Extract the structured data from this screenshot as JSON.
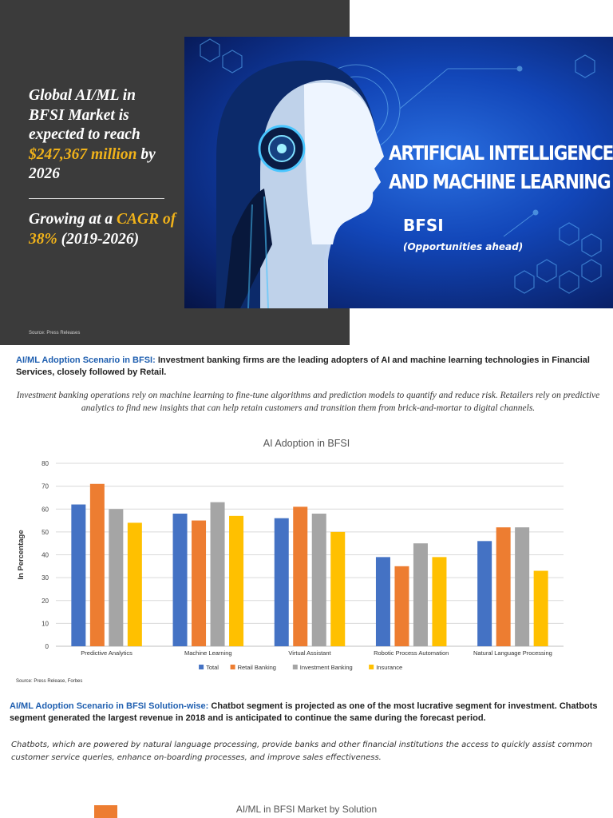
{
  "hero": {
    "line1_a": "Global AI/ML in BFSI Market is expected to reach ",
    "line1_hl": "$247,367 million",
    "line1_b": " by 2026",
    "line2_a": "Growing at a ",
    "line2_hl": "CAGR of 38%",
    "line2_b": " (2019-2026)",
    "source": "Source: Press Releases"
  },
  "banner": {
    "title_1": "ARTIFICIAL INTELLIGENCE",
    "title_2": "AND MACHINE LEARNING",
    "bfsi": "BFSI",
    "sub": "(Opportunities ahead)"
  },
  "section1": {
    "key": "AI/ML Adoption Scenario in BFSI:",
    "text": " Investment banking firms are the leading adopters of AI and machine learning technologies in Financial Services, closely followed by Retail.",
    "italic": "Investment banking operations rely on machine learning to fine-tune algorithms and prediction models to quantify and reduce risk. Retailers rely on predictive analytics to find new insights that can help retain customers and transition them from brick-and-mortar to digital channels."
  },
  "chart_data": {
    "type": "bar",
    "title": "AI Adoption in BFSI",
    "ylabel": "In Percentage",
    "xlabel": "",
    "ylim": [
      0,
      80
    ],
    "yticks": [
      0,
      10,
      20,
      30,
      40,
      50,
      60,
      70,
      80
    ],
    "categories": [
      "Predictive Analytics",
      "Machine Learning",
      "Virtual Assistant",
      "Robotic Process Automation",
      "Natural Language Processing"
    ],
    "series": [
      {
        "name": "Total",
        "color": "#4472c4",
        "values": [
          62,
          58,
          56,
          39,
          46
        ]
      },
      {
        "name": "Retail Banking",
        "color": "#ed7d31",
        "values": [
          71,
          55,
          61,
          35,
          52
        ]
      },
      {
        "name": "Investment Banking",
        "color": "#a5a5a5",
        "values": [
          60,
          63,
          58,
          45,
          52
        ]
      },
      {
        "name": "Insurance",
        "color": "#ffc000",
        "values": [
          54,
          57,
          50,
          39,
          33
        ]
      }
    ],
    "legend": "bottom",
    "grid": true,
    "source": "Source: Press Release, Forbes"
  },
  "section2": {
    "key": "AI/ML Adoption Scenario in BFSI Solution-wise:",
    "text": " Chatbot segment is projected as one of the most lucrative segment for investment. Chatbots segment generated the largest revenue in 2018 and is anticipated to continue the same during the forecast period.",
    "italic": "Chatbots, which are powered by natural language processing, provide banks and other financial institutions the access to quickly assist common customer service queries, enhance on-boarding processes, and improve sales effectiveness."
  },
  "bottom": {
    "title": "AI/ML in BFSI Market by Solution"
  }
}
